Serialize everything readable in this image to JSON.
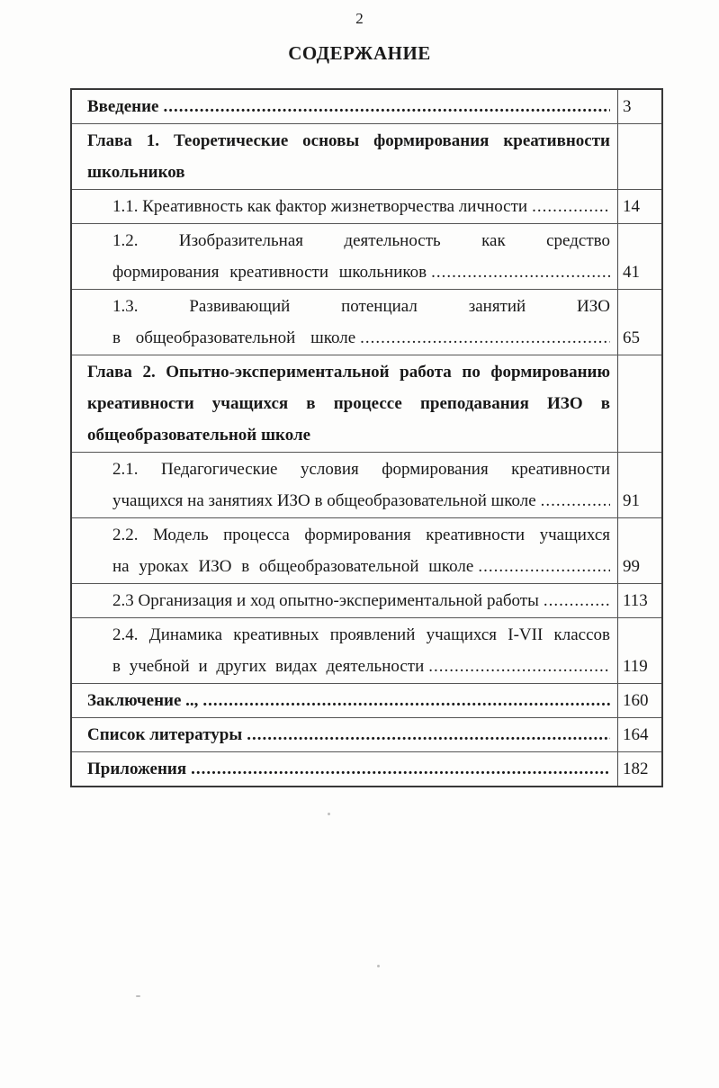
{
  "page": {
    "number": "2",
    "title": "СОДЕРЖАНИЕ"
  },
  "leader": {
    "dots": "......................................................................................................................................................"
  },
  "toc": {
    "rows": [
      {
        "style": "chapter",
        "page": "3",
        "lines": [
          {
            "text": "Введение",
            "dots": true
          }
        ]
      },
      {
        "style": "chapter",
        "page": "",
        "lines": [
          {
            "text": "Глава 1. Теоретические основы формирования креативности",
            "justify": true
          },
          {
            "text": "школьников"
          }
        ]
      },
      {
        "style": "sub",
        "page": "14",
        "lines": [
          {
            "text": "1.1. Креативность как фактор жизнетворчества личности",
            "dots": true
          }
        ]
      },
      {
        "style": "sub",
        "page": "41",
        "lines": [
          {
            "text": "1.2. Изобразительная деятельность как средство",
            "justify": true
          },
          {
            "text": "формирования креативности школьников",
            "dots": true,
            "ws": 7
          }
        ]
      },
      {
        "style": "sub",
        "page": "65",
        "lines": [
          {
            "text": "1.3. Развивающий потенциал занятий ИЗО",
            "justify": true
          },
          {
            "text": "в общеобразовательной школе",
            "dots": true,
            "ws": 12
          }
        ]
      },
      {
        "style": "chapter",
        "page": "",
        "lines": [
          {
            "text": "Глава 2. Опытно-экспериментальной работа по формированию",
            "justify": true
          },
          {
            "text": "креативности учащихся в процессе преподавания ИЗО в",
            "justify": true
          },
          {
            "text": "общеобразовательной школе"
          }
        ]
      },
      {
        "style": "sub",
        "page": "91",
        "lines": [
          {
            "text": "2.1. Педагогические условия формирования креативности",
            "justify": true
          },
          {
            "text": "учащихся на занятиях ИЗО в общеобразовательной школе",
            "dots": true
          }
        ]
      },
      {
        "style": "sub",
        "page": "99",
        "lines": [
          {
            "text": "2.2. Модель процесса формирования креативности учащихся",
            "justify": true
          },
          {
            "text": "на уроках ИЗО в общеобразовательной школе",
            "dots": true,
            "ws": 6
          }
        ]
      },
      {
        "style": "sub",
        "page": "113",
        "lines": [
          {
            "text": "2.3 Организация и ход опытно-экспериментальной работы",
            "dots": true
          }
        ]
      },
      {
        "style": "sub",
        "page": "119",
        "lines": [
          {
            "text": "2.4. Динамика креативных проявлений учащихся I-VII классов",
            "justify": true
          },
          {
            "text": "в учебной и других видах деятельности",
            "dots": true,
            "ws": 5
          }
        ]
      },
      {
        "style": "chapter",
        "page": "160",
        "lines": [
          {
            "text": "Заключение ..,",
            "dots": true
          }
        ]
      },
      {
        "style": "chapter",
        "page": "164",
        "lines": [
          {
            "text": "Список литературы",
            "dots": true
          }
        ]
      },
      {
        "style": "chapter",
        "page": "182",
        "lines": [
          {
            "text": "Приложения",
            "dots": true
          }
        ]
      }
    ]
  }
}
